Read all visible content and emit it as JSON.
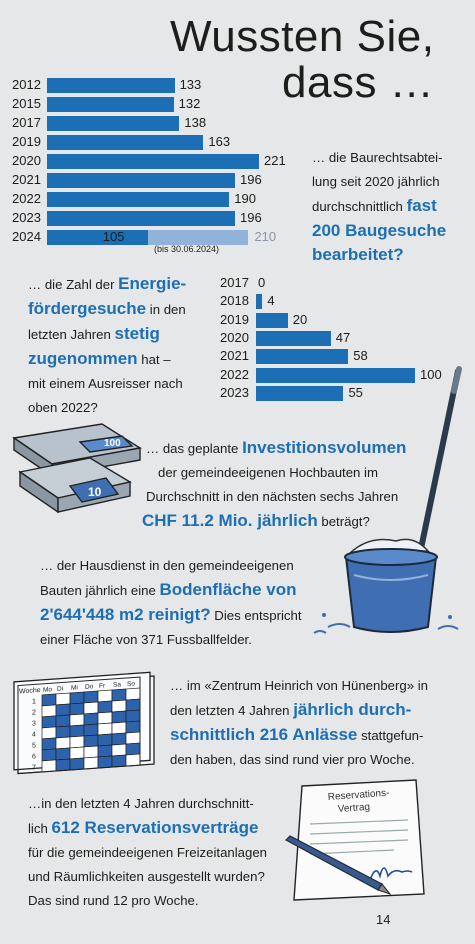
{
  "title": {
    "line1": "Wussten Sie,",
    "line2": "dass …"
  },
  "chart_data": [
    {
      "type": "bar",
      "orientation": "horizontal",
      "categories": [
        "2012",
        "2015",
        "2017",
        "2019",
        "2020",
        "2021",
        "2022",
        "2023",
        "2024"
      ],
      "values": [
        133,
        132,
        138,
        163,
        221,
        196,
        190,
        196,
        105
      ],
      "projection_2024": 210,
      "note_2024": "(bis 30.06.2024)"
    },
    {
      "type": "bar",
      "orientation": "horizontal",
      "categories": [
        "2017",
        "2018",
        "2019",
        "2020",
        "2021",
        "2022",
        "2023"
      ],
      "values": [
        0,
        4,
        20,
        47,
        58,
        100,
        55
      ]
    }
  ],
  "blocks": {
    "baugesuche": {
      "pre": "… die Baurechtsabtei-",
      "pre2": "lung seit 2020 jährlich",
      "pre3": "durchschnittlich",
      "hl1": "fast",
      "hl2": "200 Baugesuche",
      "hl3": "bearbeitet?"
    },
    "energie": {
      "pre": "… die Zahl der",
      "hl1": "Energie-",
      "hl2": "fördergesuche",
      "mid": "in den",
      "mid2": "letzten Jahren",
      "hl3": "stetig",
      "hl4": "zugenommen",
      "post": "hat –",
      "post2": "mit einem Ausreisser nach",
      "post3": "oben 2022?"
    },
    "invest": {
      "pre": "… das geplante",
      "hl1": "Investitionsvolumen",
      "l2": "der gemeindeeigenen Hochbauten im",
      "l3": "Durchschnitt in den nächsten sechs Jahren",
      "hl2": "CHF 11.2 Mio. jährlich",
      "post": "beträgt?"
    },
    "hausdienst": {
      "l1": "… der Hausdienst in den gemeindeeigenen",
      "pre2": "Bauten jährlich eine",
      "hl1": "Bodenfläche von",
      "hl2": "2'644'448 m2 reinigt?",
      "post": "Dies entspricht",
      "l4": "einer Fläche von 371 Fussballfelder."
    },
    "zentrum": {
      "l1": "… im «Zentrum Heinrich von Hünenberg» in",
      "pre2": "den letzten 4 Jahren",
      "hl1": "jährlich durch-",
      "hl2": "schnittlich 216 Anlässe",
      "post": "stattgefun-",
      "l4": "den haben, das sind rund vier pro Woche."
    },
    "reservation": {
      "l1": "…in den letzten 4 Jahren durchschnitt-",
      "pre2": "lich",
      "hl1": "612 Reservationsverträge",
      "l3": "für die gemeindeeigenen Freizeitanlagen",
      "l4": "und Räumlichkeiten ausgestellt wurden?",
      "l5": "Das sind rund 12 pro Woche."
    }
  },
  "illustrations": {
    "money_labels": [
      "100",
      "10"
    ],
    "calendar_header": [
      "Woche",
      "Mo",
      "Di",
      "Mi",
      "Do",
      "Fr",
      "Sa",
      "So"
    ],
    "calendar_weeks": [
      "1",
      "2",
      "3",
      "4",
      "5",
      "6",
      "7"
    ],
    "contract_title_1": "Reservations-",
    "contract_title_2": "Vertrag"
  },
  "page_number": "14",
  "colors": {
    "accent": "#1d6fb5",
    "projection": "#8fb3d9",
    "background": "#e6e7e8"
  }
}
